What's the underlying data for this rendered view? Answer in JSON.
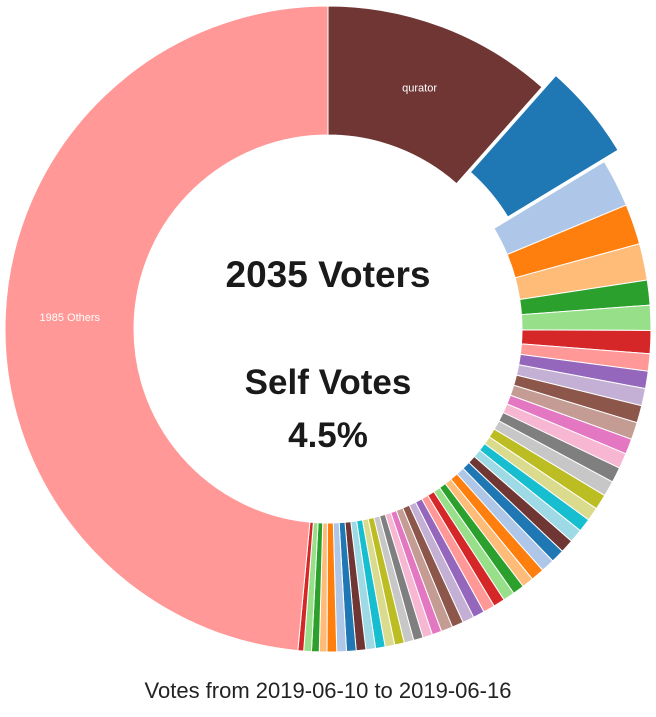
{
  "caption": "Votes from 2019-06-10 to 2019-06-16",
  "center": {
    "voters_text": "2035 Voters",
    "self_votes_label": "Self Votes",
    "self_votes_value": "4.5%"
  },
  "chart_data": {
    "type": "pie",
    "variant": "donut",
    "total_voters": 2035,
    "self_votes_percent": 4.5,
    "start_angle_deg": 0,
    "direction": "clockwise",
    "slices": [
      {
        "label": "qurator",
        "value": 12.0,
        "color": "#6f3633",
        "show_label": true,
        "exploded": false
      },
      {
        "label": "",
        "value": 5.0,
        "color": "#1f77b4",
        "show_label": false,
        "exploded": true
      },
      {
        "label": "",
        "value": 2.5,
        "color": "#aec7e8",
        "show_label": false,
        "exploded": false
      },
      {
        "label": "",
        "value": 2.1,
        "color": "#ff7f0e",
        "show_label": false,
        "exploded": false
      },
      {
        "label": "",
        "value": 1.9,
        "color": "#ffbb78",
        "show_label": false,
        "exploded": false
      },
      {
        "label": "",
        "value": 1.3,
        "color": "#2ca02c",
        "show_label": false,
        "exploded": false
      },
      {
        "label": "",
        "value": 1.3,
        "color": "#98df8a",
        "show_label": false,
        "exploded": false
      },
      {
        "label": "",
        "value": 1.2,
        "color": "#d62728",
        "show_label": false,
        "exploded": false
      },
      {
        "label": "",
        "value": 0.9,
        "color": "#ff9896",
        "show_label": false,
        "exploded": false
      },
      {
        "label": "",
        "value": 0.9,
        "color": "#9467bd",
        "show_label": false,
        "exploded": false
      },
      {
        "label": "",
        "value": 0.9,
        "color": "#c5b0d5",
        "show_label": false,
        "exploded": false
      },
      {
        "label": "",
        "value": 0.9,
        "color": "#8c564b",
        "show_label": false,
        "exploded": false
      },
      {
        "label": "",
        "value": 0.9,
        "color": "#c49c94",
        "show_label": false,
        "exploded": false
      },
      {
        "label": "",
        "value": 0.8,
        "color": "#e377c2",
        "show_label": false,
        "exploded": false
      },
      {
        "label": "",
        "value": 0.8,
        "color": "#f7b6d2",
        "show_label": false,
        "exploded": false
      },
      {
        "label": "",
        "value": 0.8,
        "color": "#7f7f7f",
        "show_label": false,
        "exploded": false
      },
      {
        "label": "",
        "value": 0.8,
        "color": "#c7c7c7",
        "show_label": false,
        "exploded": false
      },
      {
        "label": "",
        "value": 0.8,
        "color": "#bcbd22",
        "show_label": false,
        "exploded": false
      },
      {
        "label": "",
        "value": 0.7,
        "color": "#dbdb8d",
        "show_label": false,
        "exploded": false
      },
      {
        "label": "",
        "value": 0.7,
        "color": "#17becf",
        "show_label": false,
        "exploded": false
      },
      {
        "label": "",
        "value": 0.7,
        "color": "#9edae5",
        "show_label": false,
        "exploded": false
      },
      {
        "label": "",
        "value": 0.7,
        "color": "#6f3633",
        "show_label": false,
        "exploded": false
      },
      {
        "label": "",
        "value": 0.7,
        "color": "#1f77b4",
        "show_label": false,
        "exploded": false
      },
      {
        "label": "",
        "value": 0.7,
        "color": "#aec7e8",
        "show_label": false,
        "exploded": false
      },
      {
        "label": "",
        "value": 0.7,
        "color": "#ff7f0e",
        "show_label": false,
        "exploded": false
      },
      {
        "label": "",
        "value": 0.6,
        "color": "#ffbb78",
        "show_label": false,
        "exploded": false
      },
      {
        "label": "",
        "value": 0.6,
        "color": "#2ca02c",
        "show_label": false,
        "exploded": false
      },
      {
        "label": "",
        "value": 0.6,
        "color": "#98df8a",
        "show_label": false,
        "exploded": false
      },
      {
        "label": "",
        "value": 0.6,
        "color": "#d62728",
        "show_label": false,
        "exploded": false
      },
      {
        "label": "",
        "value": 0.6,
        "color": "#ff9896",
        "show_label": false,
        "exploded": false
      },
      {
        "label": "",
        "value": 0.6,
        "color": "#9467bd",
        "show_label": false,
        "exploded": false
      },
      {
        "label": "",
        "value": 0.6,
        "color": "#c5b0d5",
        "show_label": false,
        "exploded": false
      },
      {
        "label": "",
        "value": 0.6,
        "color": "#8c564b",
        "show_label": false,
        "exploded": false
      },
      {
        "label": "",
        "value": 0.6,
        "color": "#c49c94",
        "show_label": false,
        "exploded": false
      },
      {
        "label": "",
        "value": 0.5,
        "color": "#e377c2",
        "show_label": false,
        "exploded": false
      },
      {
        "label": "",
        "value": 0.5,
        "color": "#f7b6d2",
        "show_label": false,
        "exploded": false
      },
      {
        "label": "",
        "value": 0.5,
        "color": "#7f7f7f",
        "show_label": false,
        "exploded": false
      },
      {
        "label": "",
        "value": 0.5,
        "color": "#c7c7c7",
        "show_label": false,
        "exploded": false
      },
      {
        "label": "",
        "value": 0.5,
        "color": "#bcbd22",
        "show_label": false,
        "exploded": false
      },
      {
        "label": "",
        "value": 0.5,
        "color": "#dbdb8d",
        "show_label": false,
        "exploded": false
      },
      {
        "label": "",
        "value": 0.5,
        "color": "#17becf",
        "show_label": false,
        "exploded": false
      },
      {
        "label": "",
        "value": 0.5,
        "color": "#9edae5",
        "show_label": false,
        "exploded": false
      },
      {
        "label": "",
        "value": 0.5,
        "color": "#6f3633",
        "show_label": false,
        "exploded": false
      },
      {
        "label": "",
        "value": 0.5,
        "color": "#1f77b4",
        "show_label": false,
        "exploded": false
      },
      {
        "label": "",
        "value": 0.5,
        "color": "#aec7e8",
        "show_label": false,
        "exploded": false
      },
      {
        "label": "",
        "value": 0.5,
        "color": "#ff7f0e",
        "show_label": false,
        "exploded": false
      },
      {
        "label": "",
        "value": 0.4,
        "color": "#ffbb78",
        "show_label": false,
        "exploded": false
      },
      {
        "label": "",
        "value": 0.4,
        "color": "#2ca02c",
        "show_label": false,
        "exploded": false
      },
      {
        "label": "",
        "value": 0.4,
        "color": "#98df8a",
        "show_label": false,
        "exploded": false
      },
      {
        "label": "",
        "value": 0.3,
        "color": "#d62728",
        "show_label": false,
        "exploded": false
      },
      {
        "label": "1985 Others",
        "value": 50.5,
        "color": "#ff9896",
        "show_label": true,
        "exploded": false
      }
    ]
  }
}
